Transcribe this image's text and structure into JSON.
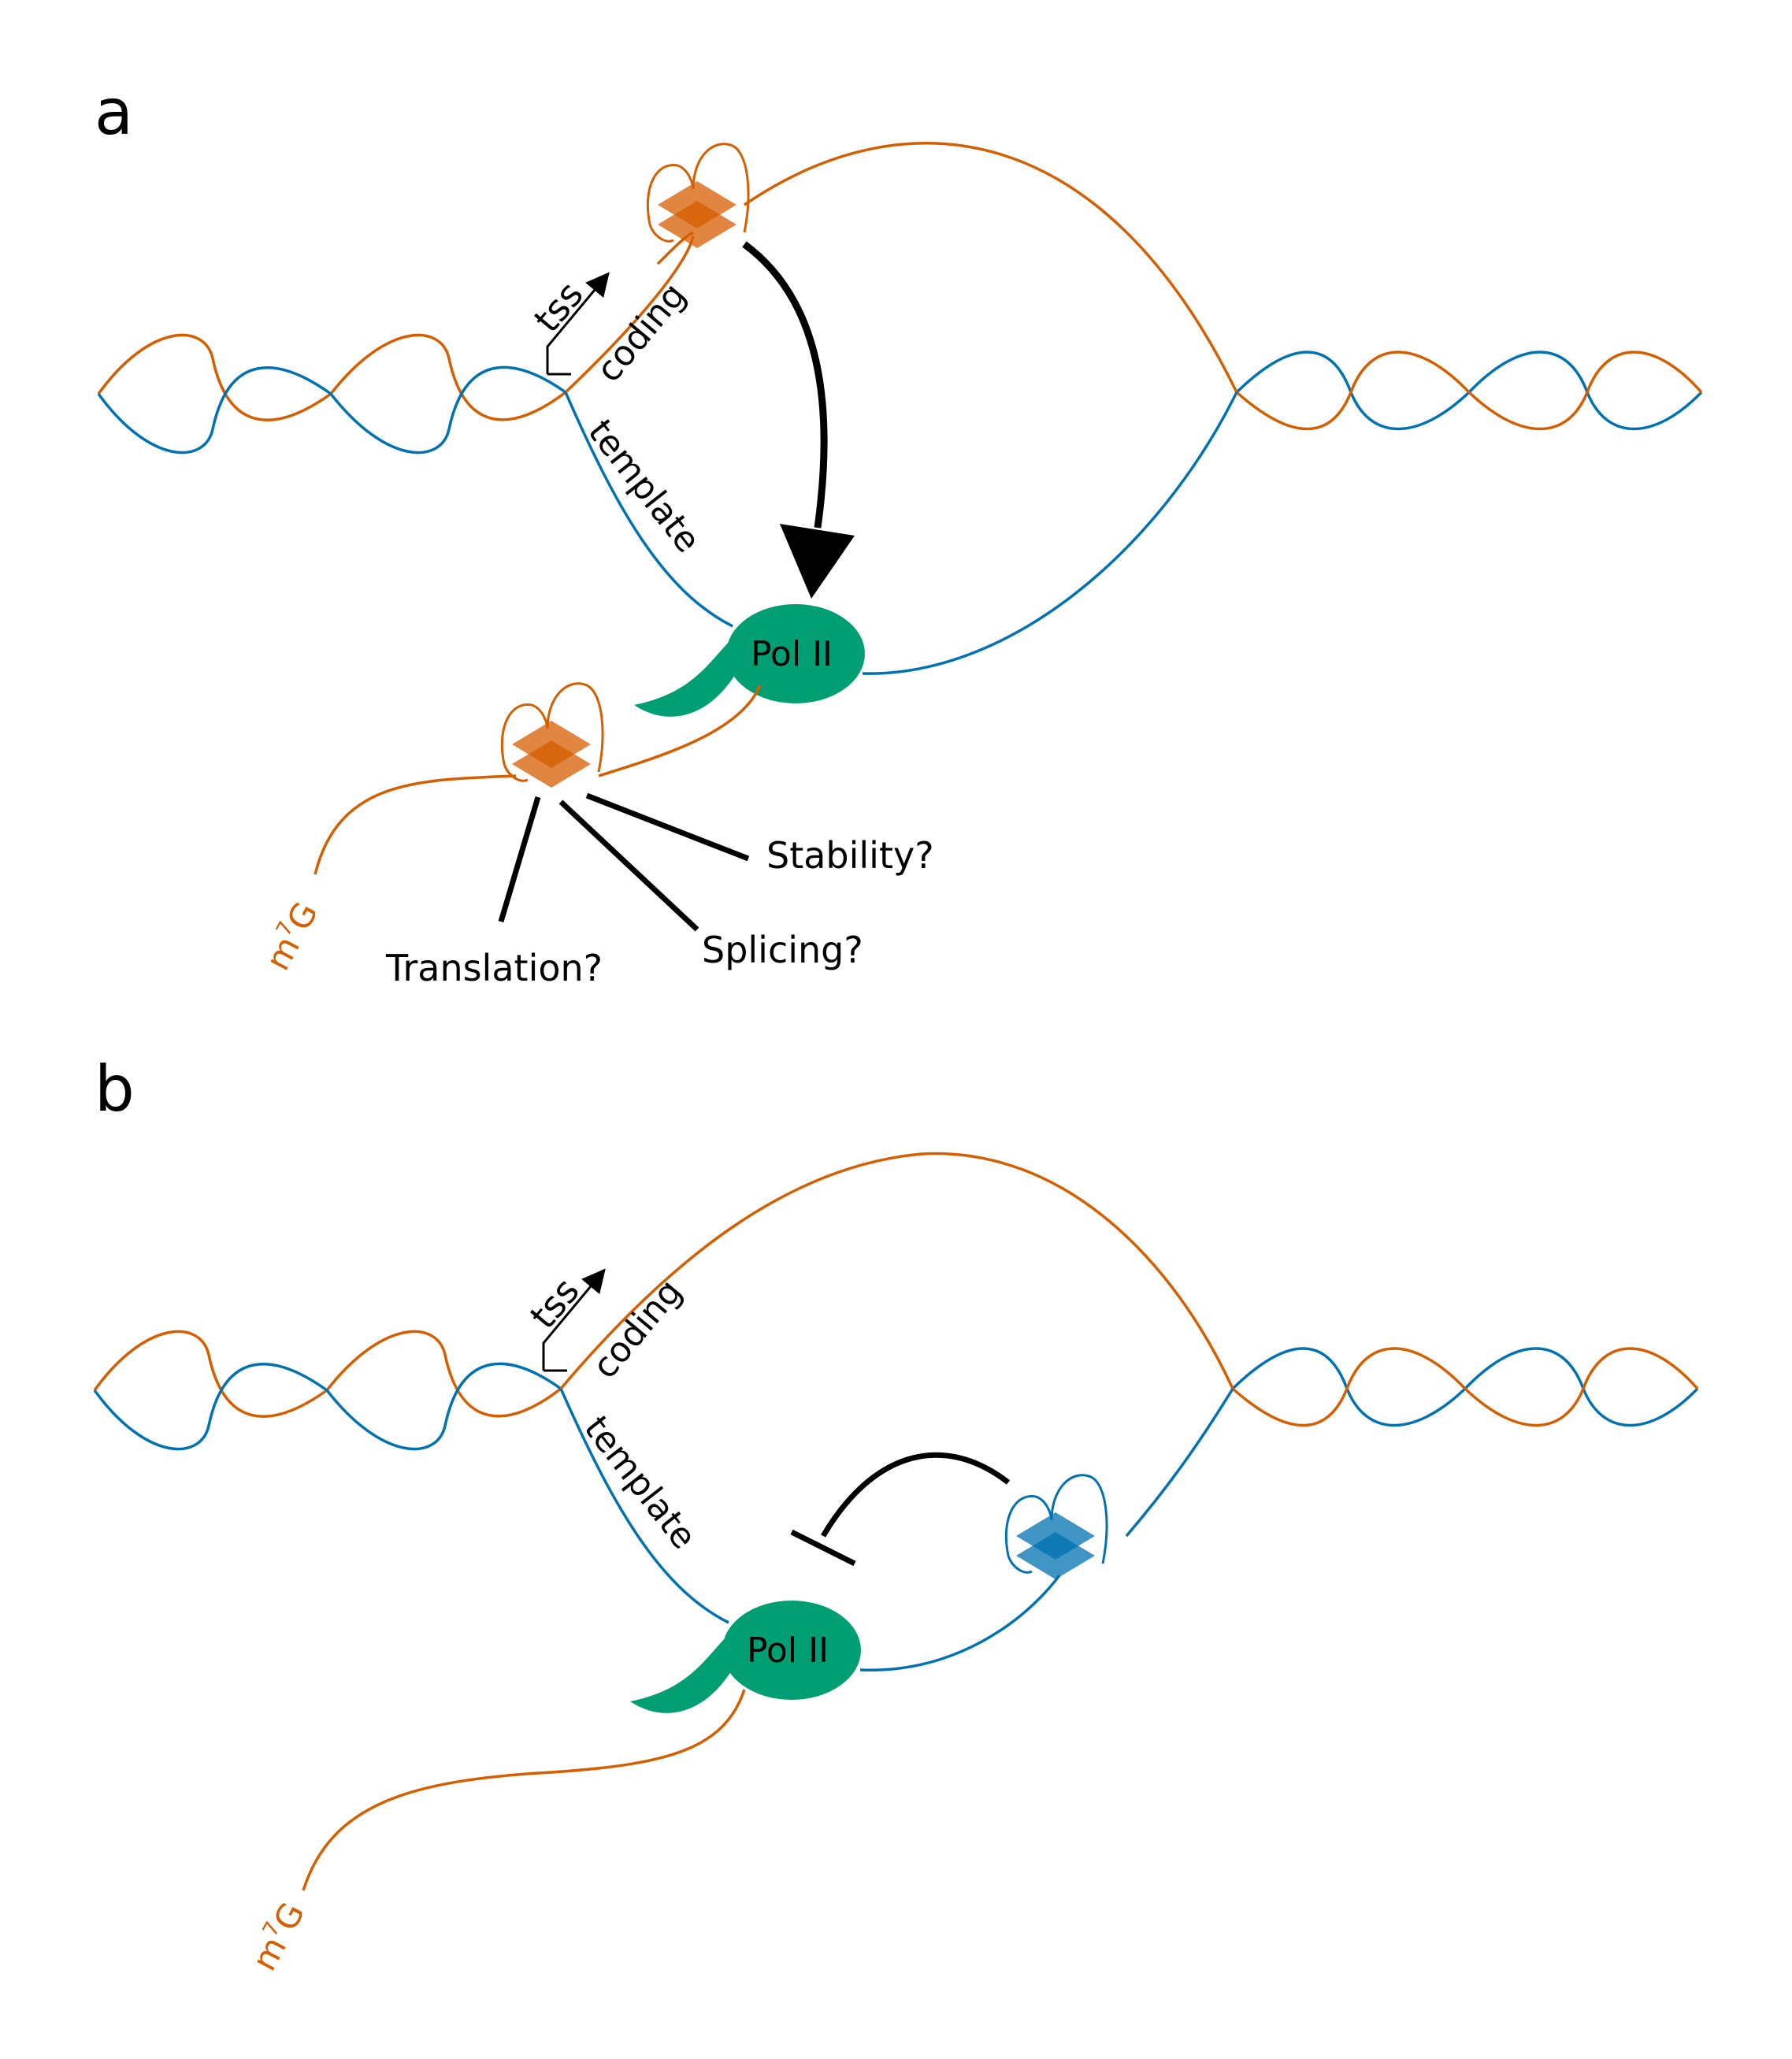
{
  "panels": [
    {
      "letter": "a",
      "tss": "tss",
      "coding": "coding",
      "template": "template",
      "polymerase": "Pol II",
      "cap_base": "m",
      "cap_sup": "7",
      "cap_end": "G",
      "effects": [
        "Stability?",
        "Splicing?",
        "Translation?"
      ]
    },
    {
      "letter": "b",
      "tss": "tss",
      "coding": "coding",
      "template": "template",
      "polymerase": "Pol II",
      "cap_base": "m",
      "cap_sup": "7",
      "cap_end": "G"
    }
  ],
  "colors": {
    "coding_strand": "#d55e00",
    "template_strand": "#0072b2",
    "polymerase": "#009e73",
    "arrow": "#000000"
  },
  "icons": {
    "g_quadruplex_coding": "g-quadruplex-orange",
    "g_quadruplex_template": "g-quadruplex-blue",
    "promoter": "tss-arrow-icon"
  }
}
